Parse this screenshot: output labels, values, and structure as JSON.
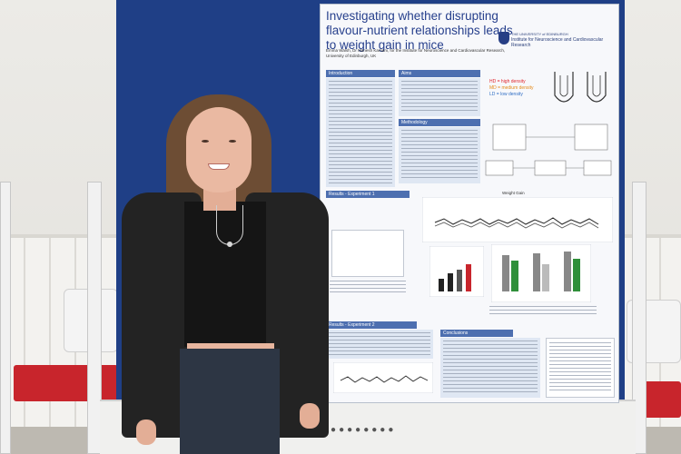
{
  "poster": {
    "title": "Investigating whether disrupting flavour-nutrient relationships leads to weight gain in mice",
    "authors": "Emma Walsh, Dr Manesh Karnani, for the Institute for Neuroscience and Cardiovascular Research, University of Edinburgh, UK",
    "institution_line1": "THE UNIVERSITY of EDINBURGH",
    "institution_line2": "Institute for Neuroscience and Cardiovascular Research",
    "sections": {
      "introduction": "Introduction",
      "aims": "Aims",
      "methodology": "Methodology",
      "results1": "Results - Experiment 1",
      "results2": "Results - Experiment 2",
      "conclusions": "Conclusions"
    },
    "density_legend": {
      "hd": "HD = high density",
      "md": "MD = medium density",
      "ld": "LD = low density"
    },
    "chart_titles": {
      "weight": "Weight Gain"
    }
  },
  "colors": {
    "poster_heading": "#263f8c",
    "section_header": "#4d6fb0",
    "board_blue": "#1f3f86",
    "chair_red": "#c8252c",
    "hd_red": "#e0262d",
    "md_orange": "#e58a18",
    "ld_blue": "#2e6dc4"
  }
}
